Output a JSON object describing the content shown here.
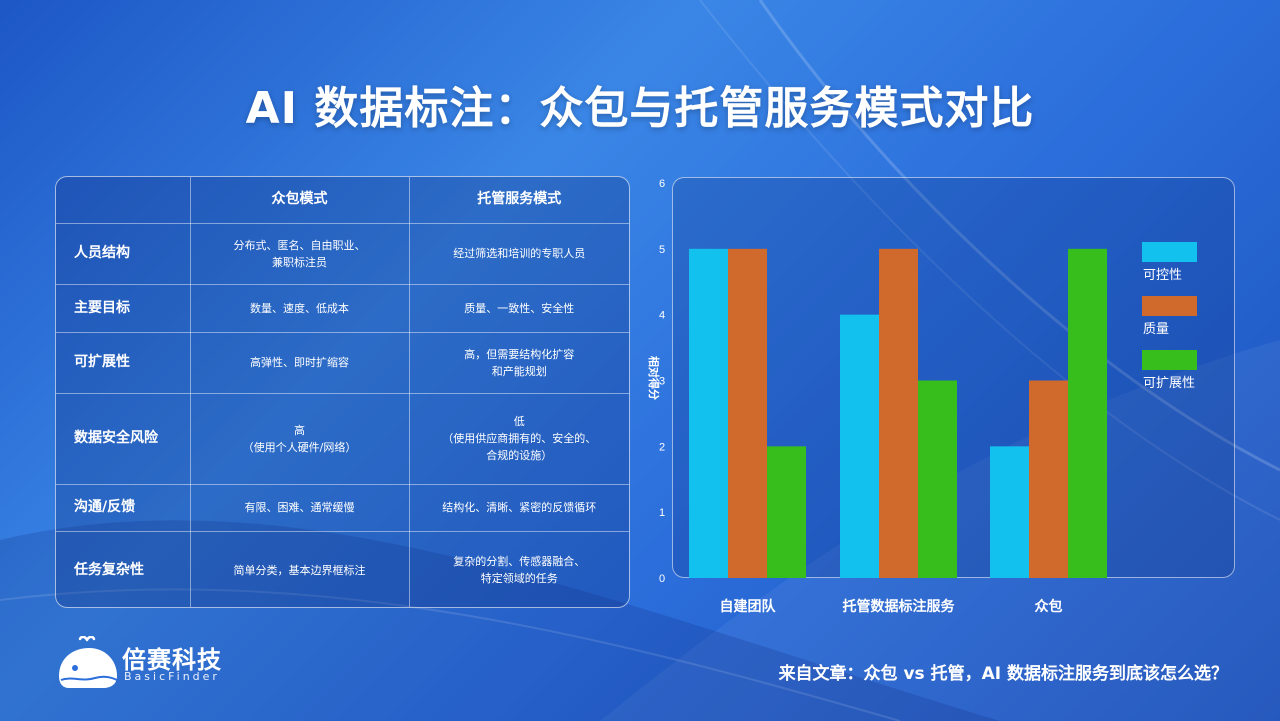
{
  "title": "AI 数据标注：众包与托管服务模式对比",
  "table": {
    "headers": [
      "",
      "众包模式",
      "托管服务模式"
    ],
    "rows": [
      {
        "label": "人员结构",
        "crowd": "分布式、匿名、自由职业、\n兼职标注员",
        "managed": "经过筛选和培训的专职人员"
      },
      {
        "label": "主要目标",
        "crowd": "数量、速度、低成本",
        "managed": "质量、一致性、安全性"
      },
      {
        "label": "可扩展性",
        "crowd": "高弹性、即时扩缩容",
        "managed": "高，但需要结构化扩容\n和产能规划"
      },
      {
        "label": "数据安全风险",
        "crowd": "高\n（使用个人硬件/网络）",
        "managed": "低\n（使用供应商拥有的、安全的、\n合规的设施）"
      },
      {
        "label": "沟通/反馈",
        "crowd": "有限、困难、通常缓慢",
        "managed": "结构化、清晰、紧密的反馈循环"
      },
      {
        "label": "任务复杂性",
        "crowd": "简单分类，基本边界框标注",
        "managed": "复杂的分割、传感器融合、\n特定领域的任务"
      }
    ]
  },
  "chart_data": {
    "type": "bar",
    "categories": [
      "自建团队",
      "托管数据标注服务",
      "众包"
    ],
    "series": [
      {
        "name": "可控性",
        "values": [
          5,
          4,
          2
        ],
        "color": "#12c1ee"
      },
      {
        "name": "质量",
        "values": [
          5,
          5,
          3
        ],
        "color": "#d06a2c"
      },
      {
        "name": "可扩展性",
        "values": [
          2,
          3,
          5
        ],
        "color": "#37be1c"
      }
    ],
    "ylabel": "相对得分",
    "ylim": [
      0,
      6
    ],
    "yticks": [
      0,
      1,
      2,
      3,
      4,
      5,
      6
    ],
    "legend": "right",
    "grid": false
  },
  "logo": {
    "name": "倍赛科技",
    "sub": "BasicFinder"
  },
  "source": "来自文章：众包 vs 托管，AI 数据标注服务到底该怎么选？"
}
